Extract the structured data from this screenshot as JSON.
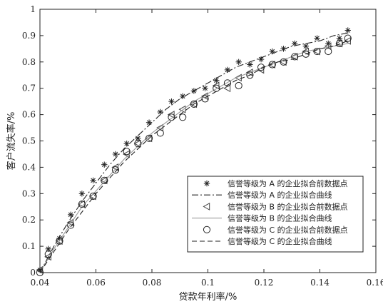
{
  "chart_data": {
    "type": "scatter",
    "xlabel": "贷款年利率/%",
    "ylabel": "客户流失率/%",
    "xlim": [
      0.04,
      0.16
    ],
    "ylim": [
      0,
      1
    ],
    "xticks": [
      "0.04",
      "0.06",
      "0.08",
      "0.1",
      "0.12",
      "0.14",
      "0.16"
    ],
    "yticks": [
      "0",
      "0.1",
      "0.2",
      "0.3",
      "0.4",
      "0.5",
      "0.6",
      "0.7",
      "0.8",
      "0.9",
      "1"
    ],
    "grid": false,
    "legend_position": "bottom-right",
    "series": [
      {
        "name": "信誉等级为 A 的企业拟合前数据点",
        "kind": "points",
        "marker": "star",
        "x": [
          0.04,
          0.043,
          0.047,
          0.051,
          0.055,
          0.059,
          0.063,
          0.067,
          0.071,
          0.075,
          0.079,
          0.083,
          0.087,
          0.091,
          0.095,
          0.099,
          0.103,
          0.107,
          0.111,
          0.115,
          0.119,
          0.123,
          0.127,
          0.131,
          0.135,
          0.139,
          0.143,
          0.147,
          0.15
        ],
        "y": [
          0.01,
          0.09,
          0.13,
          0.22,
          0.3,
          0.35,
          0.41,
          0.45,
          0.49,
          0.51,
          0.57,
          0.61,
          0.65,
          0.67,
          0.69,
          0.7,
          0.73,
          0.77,
          0.8,
          0.79,
          0.81,
          0.84,
          0.85,
          0.87,
          0.86,
          0.89,
          0.87,
          0.89,
          0.92
        ]
      },
      {
        "name": "信誉等级为 A 的企业拟合曲线",
        "kind": "line",
        "dash": "dashdot",
        "x": [
          0.04,
          0.045,
          0.05,
          0.055,
          0.06,
          0.065,
          0.07,
          0.075,
          0.08,
          0.085,
          0.09,
          0.095,
          0.1,
          0.105,
          0.11,
          0.115,
          0.12,
          0.125,
          0.13,
          0.135,
          0.14,
          0.145,
          0.15
        ],
        "y": [
          0.0,
          0.1,
          0.19,
          0.27,
          0.34,
          0.41,
          0.47,
          0.52,
          0.57,
          0.62,
          0.66,
          0.69,
          0.72,
          0.75,
          0.78,
          0.8,
          0.82,
          0.84,
          0.86,
          0.87,
          0.88,
          0.9,
          0.91
        ]
      },
      {
        "name": "信誉等级为 B 的企业拟合前数据点",
        "kind": "points",
        "marker": "triangle-left",
        "x": [
          0.04,
          0.043,
          0.047,
          0.051,
          0.055,
          0.059,
          0.063,
          0.067,
          0.071,
          0.075,
          0.079,
          0.083,
          0.087,
          0.091,
          0.095,
          0.099,
          0.103,
          0.107,
          0.111,
          0.115,
          0.119,
          0.123,
          0.127,
          0.131,
          0.135,
          0.139,
          0.143,
          0.147,
          0.15
        ],
        "y": [
          0.01,
          0.06,
          0.12,
          0.19,
          0.26,
          0.29,
          0.35,
          0.4,
          0.45,
          0.49,
          0.51,
          0.55,
          0.6,
          0.62,
          0.64,
          0.67,
          0.71,
          0.7,
          0.74,
          0.76,
          0.77,
          0.79,
          0.8,
          0.82,
          0.84,
          0.84,
          0.86,
          0.87,
          0.88
        ]
      },
      {
        "name": "信誉等级为 B 的企业拟合曲线",
        "kind": "line",
        "dash": "solid-light",
        "x": [
          0.04,
          0.045,
          0.05,
          0.055,
          0.06,
          0.065,
          0.07,
          0.075,
          0.08,
          0.085,
          0.09,
          0.095,
          0.1,
          0.105,
          0.11,
          0.115,
          0.12,
          0.125,
          0.13,
          0.135,
          0.14,
          0.145,
          0.15
        ],
        "y": [
          0.0,
          0.09,
          0.17,
          0.25,
          0.31,
          0.37,
          0.43,
          0.48,
          0.53,
          0.57,
          0.61,
          0.65,
          0.68,
          0.71,
          0.74,
          0.76,
          0.78,
          0.8,
          0.82,
          0.84,
          0.85,
          0.86,
          0.87
        ]
      },
      {
        "name": "信誉等级为 C 的企业拟合前数据点",
        "kind": "points",
        "marker": "circle",
        "x": [
          0.04,
          0.043,
          0.047,
          0.051,
          0.055,
          0.059,
          0.063,
          0.067,
          0.071,
          0.075,
          0.079,
          0.083,
          0.087,
          0.091,
          0.095,
          0.099,
          0.103,
          0.107,
          0.111,
          0.115,
          0.119,
          0.123,
          0.127,
          0.131,
          0.135,
          0.139,
          0.143,
          0.147,
          0.15
        ],
        "y": [
          0.0,
          0.07,
          0.12,
          0.18,
          0.26,
          0.29,
          0.35,
          0.39,
          0.46,
          0.49,
          0.51,
          0.53,
          0.59,
          0.59,
          0.64,
          0.66,
          0.7,
          0.72,
          0.71,
          0.75,
          0.78,
          0.79,
          0.8,
          0.82,
          0.83,
          0.84,
          0.84,
          0.87,
          0.89
        ]
      },
      {
        "name": "信誉等级为 C 的企业拟合曲线",
        "kind": "line",
        "dash": "dashed",
        "x": [
          0.04,
          0.045,
          0.05,
          0.055,
          0.06,
          0.065,
          0.07,
          0.075,
          0.08,
          0.085,
          0.09,
          0.095,
          0.1,
          0.105,
          0.11,
          0.115,
          0.12,
          0.125,
          0.13,
          0.135,
          0.14,
          0.145,
          0.15
        ],
        "y": [
          0.0,
          0.08,
          0.16,
          0.23,
          0.3,
          0.36,
          0.42,
          0.47,
          0.52,
          0.56,
          0.6,
          0.64,
          0.67,
          0.7,
          0.73,
          0.75,
          0.78,
          0.8,
          0.81,
          0.83,
          0.85,
          0.86,
          0.88
        ]
      }
    ]
  }
}
